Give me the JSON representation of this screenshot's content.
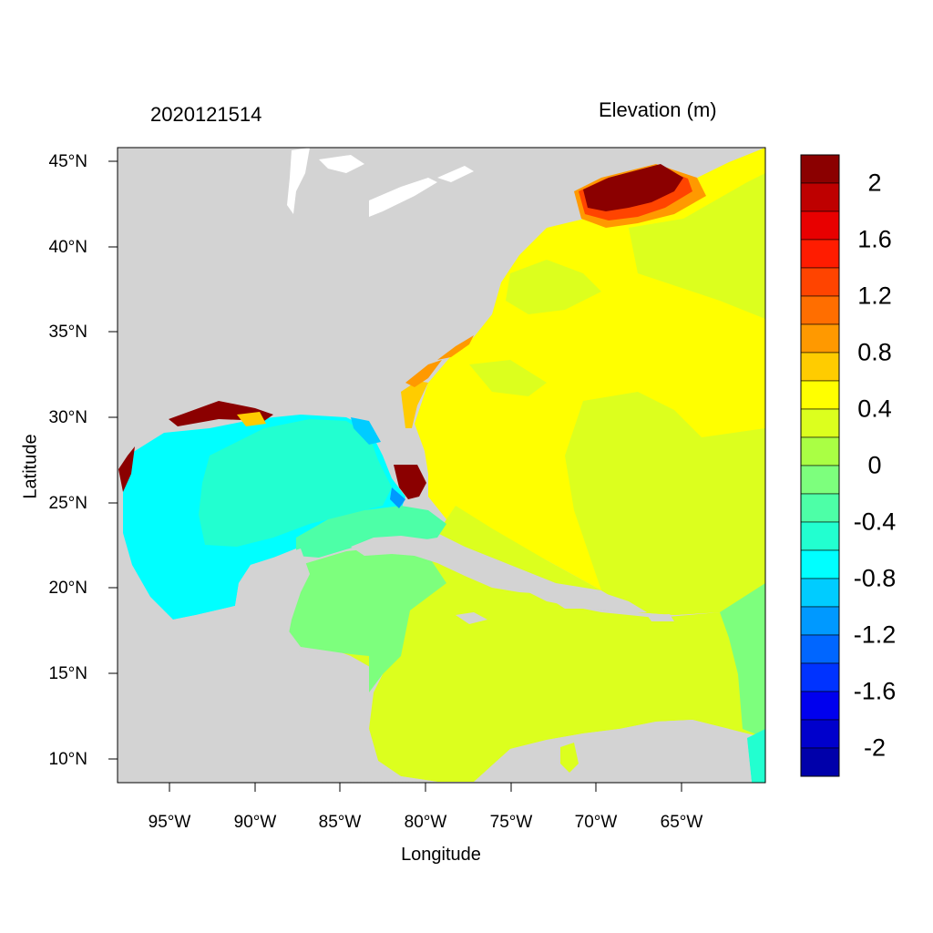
{
  "map": {
    "left_title": "2020121514",
    "right_title": "Elevation (m)",
    "x_label": "Longitude",
    "y_label": "Latitude",
    "x_ticks": [
      "95°W",
      "90°W",
      "85°W",
      "80°W",
      "75°W",
      "70°W",
      "65°W"
    ],
    "y_ticks": [
      "45°N",
      "40°N",
      "35°N",
      "30°N",
      "25°N",
      "20°N",
      "15°N",
      "10°N"
    ],
    "land_color": "#d3d3d3"
  },
  "colorbar": {
    "labels": [
      "2",
      "1.6",
      "1.2",
      "0.8",
      "0.4",
      "0",
      "-0.4",
      "-0.8",
      "-1.2",
      "-1.6",
      "-2"
    ],
    "colors": [
      "#8b0000",
      "#be0000",
      "#e80000",
      "#ff1c00",
      "#ff4400",
      "#ff6e00",
      "#ff9900",
      "#ffcc00",
      "#ffff00",
      "#dcff1e",
      "#aaff44",
      "#7dff7d",
      "#4dffa7",
      "#22ffd0",
      "#00ffff",
      "#00ccff",
      "#0099ff",
      "#0066ff",
      "#0033ff",
      "#0000ee",
      "#0000cc",
      "#0000aa"
    ]
  }
}
